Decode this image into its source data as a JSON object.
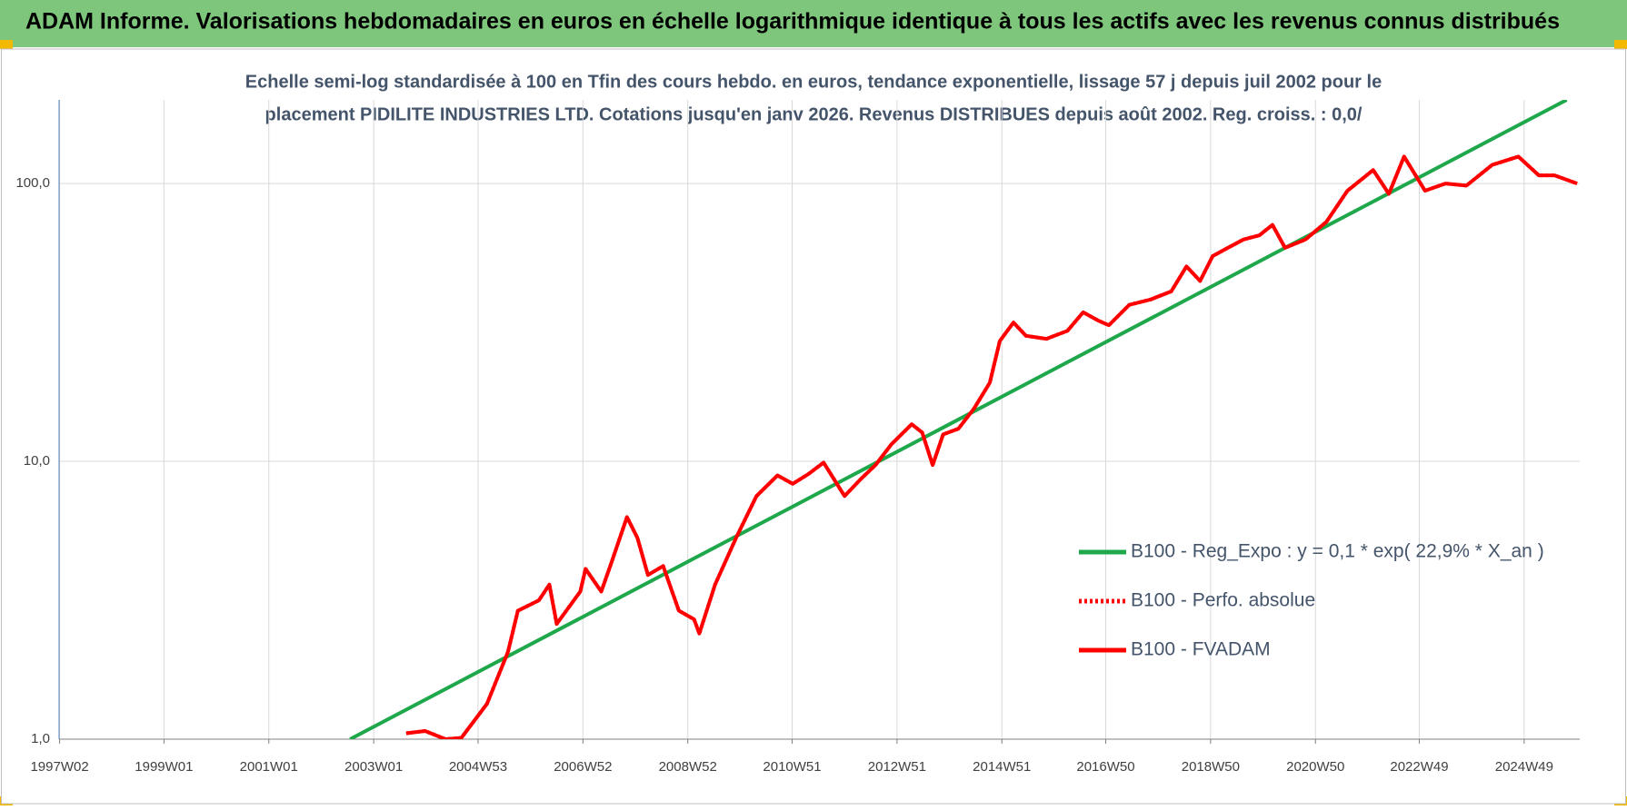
{
  "chart_data": {
    "type": "line",
    "title": "ADAM Informe. Valorisations hebdomadaires en euros en échelle logarithmique identique à tous les actifs avec les revenus connus distribués",
    "subtitle": [
      "Echelle semi-log standardisée à 100 en Tfin des cours hebdo. en euros, tendance exponentielle, lissage 57 j depuis juil 2002 pour le",
      "placement PIDILITE INDUSTRIES LTD. Cotations jusqu'en janv 2026. Revenus DISTRIBUES depuis août 2002.  Reg. croiss. : 0,0/"
    ],
    "log_y": true,
    "grid": true,
    "xlim": [
      1997.0,
      2026.0
    ],
    "ylim": [
      1,
      200
    ],
    "xticks": [
      {
        "value": 1997.01,
        "label": "1997W02"
      },
      {
        "value": 1999.0,
        "label": "1999W01"
      },
      {
        "value": 2001.0,
        "label": "2001W01"
      },
      {
        "value": 2003.0,
        "label": "2003W01"
      },
      {
        "value": 2004.99,
        "label": "2004W53"
      },
      {
        "value": 2006.99,
        "label": "2006W52"
      },
      {
        "value": 2008.99,
        "label": "2008W52"
      },
      {
        "value": 2010.98,
        "label": "2010W51"
      },
      {
        "value": 2012.98,
        "label": "2012W51"
      },
      {
        "value": 2014.98,
        "label": "2014W51"
      },
      {
        "value": 2016.96,
        "label": "2016W50"
      },
      {
        "value": 2018.96,
        "label": "2018W50"
      },
      {
        "value": 2020.96,
        "label": "2020W50"
      },
      {
        "value": 2022.94,
        "label": "2022W49"
      },
      {
        "value": 2024.94,
        "label": "2024W49"
      }
    ],
    "yticks": [
      {
        "value": 1,
        "label": "1,0"
      },
      {
        "value": 10,
        "label": "10,0"
      },
      {
        "value": 100,
        "label": "100,0"
      }
    ],
    "legend": "right",
    "series": [
      {
        "name": "B100 - Reg_Expo : y = 0,1 * exp( 22,9% *  X_an )",
        "color": "#1ea84b",
        "style": "solid",
        "x": [
          2002.55,
          2025.75
        ],
        "values": [
          1,
          200
        ]
      },
      {
        "name": "B100 - Perfo. absolue",
        "color": "#ff0000",
        "style": "dotted",
        "x": [
          2003.62,
          2003.98,
          2004.37,
          2004.67,
          2005.16,
          2005.56,
          2005.75,
          2006.15,
          2006.35,
          2006.49,
          2006.94,
          2007.04,
          2007.34,
          2007.53,
          2007.83,
          2008.03,
          2008.23,
          2008.52,
          2008.82,
          2009.11,
          2009.21,
          2009.51,
          2009.91,
          2010.3,
          2010.7,
          2010.99,
          2011.29,
          2011.58,
          2011.98,
          2012.28,
          2012.57,
          2012.87,
          2013.26,
          2013.46,
          2013.66,
          2013.86,
          2014.15,
          2014.45,
          2014.75,
          2014.94,
          2015.2,
          2015.44,
          2015.83,
          2016.23,
          2016.53,
          2016.82,
          2017.02,
          2017.41,
          2017.81,
          2018.21,
          2018.5,
          2018.76,
          2019.0,
          2019.29,
          2019.59,
          2019.89,
          2020.14,
          2020.38,
          2020.77,
          2021.17,
          2021.57,
          2022.06,
          2022.36,
          2022.65,
          2023.05,
          2023.44,
          2023.84,
          2024.33,
          2024.83,
          2025.22,
          2025.52,
          2025.95
        ],
        "values": [
          1.05,
          1.07,
          1.0,
          1.01,
          1.34,
          2.06,
          2.9,
          3.16,
          3.6,
          2.6,
          3.4,
          4.1,
          3.4,
          4.3,
          6.3,
          5.3,
          3.9,
          4.2,
          2.9,
          2.7,
          2.4,
          3.6,
          5.3,
          7.5,
          8.9,
          8.3,
          9.0,
          9.9,
          7.5,
          8.6,
          9.7,
          11.5,
          13.6,
          12.7,
          9.7,
          12.5,
          13.1,
          15.5,
          19.2,
          27.1,
          31.6,
          28.3,
          27.6,
          29.5,
          34.4,
          32.1,
          30.9,
          36.6,
          38.2,
          40.9,
          50.3,
          44.6,
          54.8,
          58.7,
          62.9,
          65.1,
          71,
          58.7,
          62.9,
          72.8,
          94.2,
          111.8,
          91.8,
          125,
          94.2,
          100,
          98.3,
          116.7,
          125,
          107,
          107,
          100
        ]
      },
      {
        "name": "B100 - FVADAM",
        "color": "#ff0000",
        "style": "solid",
        "x": [
          2003.62,
          2003.98,
          2004.37,
          2004.67,
          2005.16,
          2005.56,
          2005.75,
          2006.15,
          2006.35,
          2006.49,
          2006.94,
          2007.04,
          2007.34,
          2007.53,
          2007.83,
          2008.03,
          2008.23,
          2008.52,
          2008.82,
          2009.11,
          2009.21,
          2009.51,
          2009.91,
          2010.3,
          2010.7,
          2010.99,
          2011.29,
          2011.58,
          2011.98,
          2012.28,
          2012.57,
          2012.87,
          2013.26,
          2013.46,
          2013.66,
          2013.86,
          2014.15,
          2014.45,
          2014.75,
          2014.94,
          2015.2,
          2015.44,
          2015.83,
          2016.23,
          2016.53,
          2016.82,
          2017.02,
          2017.41,
          2017.81,
          2018.21,
          2018.5,
          2018.76,
          2019.0,
          2019.29,
          2019.59,
          2019.89,
          2020.14,
          2020.38,
          2020.77,
          2021.17,
          2021.57,
          2022.06,
          2022.36,
          2022.65,
          2023.05,
          2023.44,
          2023.84,
          2024.33,
          2024.83,
          2025.22,
          2025.52,
          2025.95
        ],
        "values": [
          1.05,
          1.07,
          1.0,
          1.01,
          1.34,
          2.06,
          2.9,
          3.16,
          3.6,
          2.6,
          3.4,
          4.1,
          3.4,
          4.3,
          6.3,
          5.3,
          3.9,
          4.2,
          2.9,
          2.7,
          2.4,
          3.6,
          5.3,
          7.5,
          8.9,
          8.3,
          9.0,
          9.9,
          7.5,
          8.6,
          9.7,
          11.5,
          13.6,
          12.7,
          9.7,
          12.5,
          13.1,
          15.5,
          19.2,
          27.1,
          31.6,
          28.3,
          27.6,
          29.5,
          34.4,
          32.1,
          30.9,
          36.6,
          38.2,
          40.9,
          50.3,
          44.6,
          54.8,
          58.7,
          62.9,
          65.1,
          71,
          58.7,
          62.9,
          72.8,
          94.2,
          111.8,
          91.8,
          125,
          94.2,
          100,
          98.3,
          116.7,
          125,
          107,
          107,
          100
        ]
      }
    ]
  }
}
